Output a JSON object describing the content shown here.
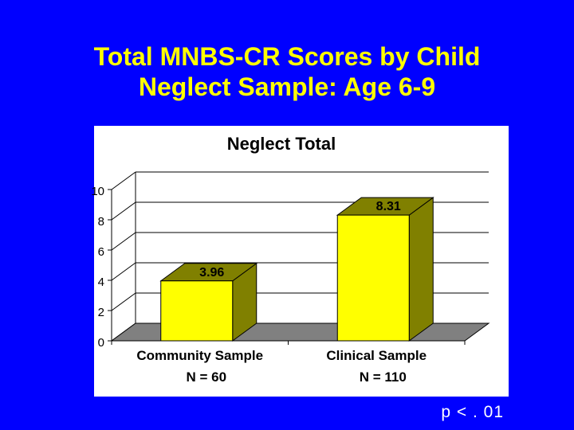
{
  "slide": {
    "title_lines": [
      "Total MNBS-CR Scores by Child",
      "Neglect Sample: Age 6-9"
    ],
    "footnote": "p < . 01"
  },
  "colors": {
    "background": "#0000FF",
    "title": "#FFFF00",
    "bar_front": "#FFFF00",
    "bar_side": "#808000",
    "floor": "#808080",
    "grid": "#FFFFFF",
    "text": "#000000"
  },
  "chart_data": {
    "type": "bar",
    "title": "Neglect Total",
    "categories": [
      "Community Sample",
      "Clinical Sample"
    ],
    "sample_sizes": [
      "N = 60",
      "N = 110"
    ],
    "values": [
      3.96,
      8.31
    ],
    "data_labels": [
      "3.96",
      "8.31"
    ],
    "yticks": [
      0,
      2,
      4,
      6,
      8,
      10
    ],
    "ylim": [
      0,
      10
    ],
    "grid": true,
    "three_d": true
  }
}
